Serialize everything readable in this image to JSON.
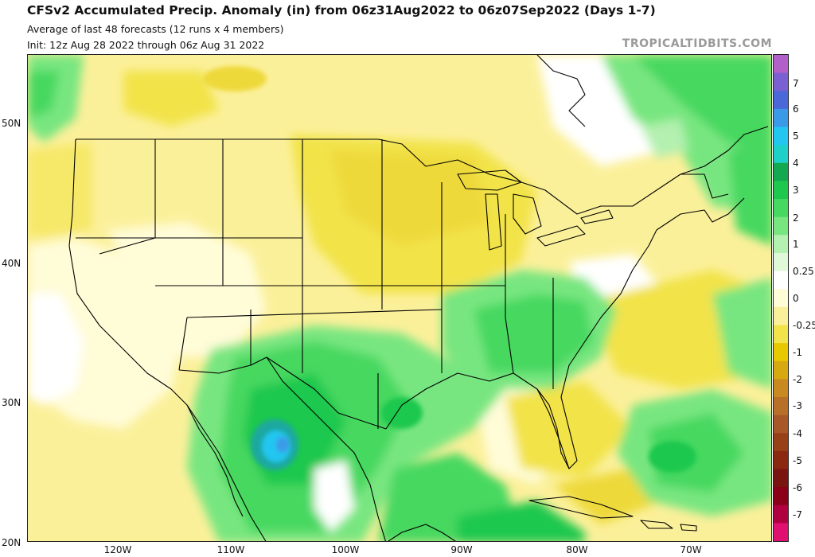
{
  "title": "CFSv2 Accumulated Precip. Anomaly (in) from 06z31Aug2022 to 06z07Sep2022 (Days 1-7)",
  "subtitle_1": "Average of last 48 forecasts (12 runs x 4 members)",
  "subtitle_2": "Init: 12z Aug 28 2022 through 06z Aug 31 2022",
  "brand": "TROPICALTIDBITS.COM",
  "lat_labels": [
    "50N",
    "40N",
    "30N",
    "20N"
  ],
  "lon_labels": [
    "120W",
    "110W",
    "100W",
    "90W",
    "80W",
    "70W"
  ],
  "colorbar": {
    "labels": [
      "7",
      "6",
      "5",
      "4",
      "3",
      "2",
      "1",
      "0.25",
      "0",
      "-0.25",
      "-1",
      "-2",
      "-3",
      "-4",
      "-5",
      "-6",
      "-7"
    ],
    "colors": [
      "#b060c8",
      "#7a60d0",
      "#4a68d8",
      "#3b9ae8",
      "#22c6f0",
      "#1ed0c8",
      "#14a850",
      "#1ec84e",
      "#46d860",
      "#78e680",
      "#b4f0b0",
      "#dff8d8",
      "#ffffff",
      "#fffcd8",
      "#fbf09a",
      "#f2e34a",
      "#e8c800",
      "#d8a810",
      "#c88a20",
      "#b87028",
      "#a85828",
      "#984018",
      "#8a2810",
      "#7a1410",
      "#8a0018",
      "#b00040",
      "#e01070"
    ]
  },
  "map_regions": [
    {
      "label": "anomaly-wet-southwest",
      "color": "#1ec84e"
    },
    {
      "label": "anomaly-wet-southeast",
      "color": "#46d860"
    },
    {
      "label": "anomaly-dry-plains",
      "color": "#f2e34a"
    },
    {
      "label": "anomaly-wet-canada",
      "color": "#78e680"
    },
    {
      "label": "anomaly-wet-atlantic",
      "color": "#46d860"
    }
  ]
}
